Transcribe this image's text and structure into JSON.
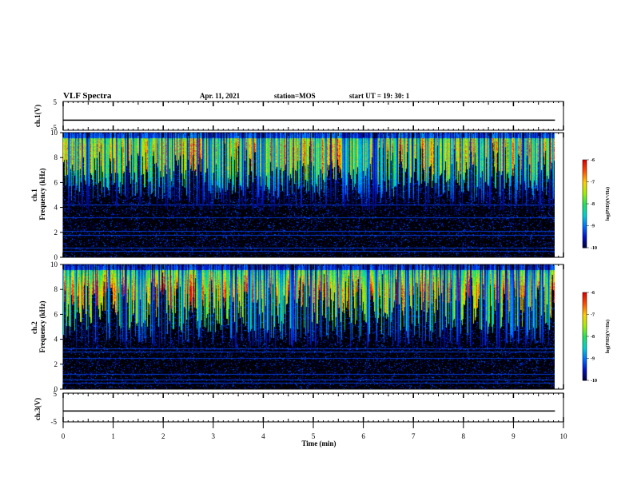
{
  "header": {
    "title": "VLF Spectra",
    "date": "Apr. 11, 2021",
    "station": "station=MOS",
    "start": "start  UT =   19: 30: 1"
  },
  "colors": {
    "background": "#000000",
    "colormap": [
      "#000033",
      "#0010c0",
      "#0070ff",
      "#00d0d0",
      "#20e060",
      "#a0f000",
      "#ffd000",
      "#ff5000",
      "#e00000"
    ]
  },
  "chart_data": [
    {
      "type": "line",
      "name": "ch1-voltage",
      "ylabel": "ch.1(V)",
      "ylim": [
        -5,
        5
      ],
      "yticks": [
        "5",
        "-5"
      ],
      "xlim": [
        0,
        10
      ],
      "x": [
        0,
        9.83
      ],
      "y": [
        -1.5,
        -1.5
      ]
    },
    {
      "type": "heatmap",
      "name": "ch1-spectrogram",
      "ylabel": "ch.1\nFrequency (kHz)",
      "xlim": [
        0,
        9.83
      ],
      "ylim": [
        0,
        10
      ],
      "yticks": [
        "0",
        "2",
        "4",
        "6",
        "8",
        "10"
      ],
      "colorbar": {
        "label": "log(PSD)(V²/Hz)",
        "range": [
          -10,
          -6
        ],
        "ticks": [
          "-6",
          "-7",
          "-8",
          "-9",
          "-10"
        ]
      },
      "features": {
        "broadband_peak_khz": [
          7,
          9
        ],
        "noise_floor_below_khz": 3,
        "horizontal_lines_khz": [
          0.5,
          0.8,
          1.8,
          2.1,
          3.2,
          4.2
        ]
      }
    },
    {
      "type": "heatmap",
      "name": "ch2-spectrogram",
      "ylabel": "ch.2\nFrequency (kHz)",
      "xlim": [
        0,
        9.83
      ],
      "ylim": [
        0,
        10
      ],
      "yticks": [
        "0",
        "2",
        "4",
        "6",
        "8",
        "10"
      ],
      "colorbar": {
        "label": "log(PSD)(V²/Hz)",
        "range": [
          -10,
          -6
        ],
        "ticks": [
          "-6",
          "-7",
          "-8",
          "-9",
          "-10"
        ]
      },
      "features": {
        "broadband_peak_khz": [
          5,
          8
        ],
        "noise_floor_below_khz": 3,
        "horizontal_lines_khz": [
          0.5,
          0.8,
          1.2,
          2.5,
          3.0,
          3.3
        ]
      }
    },
    {
      "type": "line",
      "name": "ch3-voltage",
      "ylabel": "ch.3(V)",
      "ylim": [
        -5,
        5
      ],
      "yticks": [
        "5",
        "-5"
      ],
      "xlim": [
        0,
        10
      ],
      "x": [
        0,
        9.83
      ],
      "y": [
        -1.2,
        -1.2
      ],
      "xlabel": "Time  (min)",
      "xticks": [
        "0",
        "1",
        "2",
        "3",
        "4",
        "5",
        "6",
        "7",
        "8",
        "9",
        "10"
      ]
    }
  ]
}
